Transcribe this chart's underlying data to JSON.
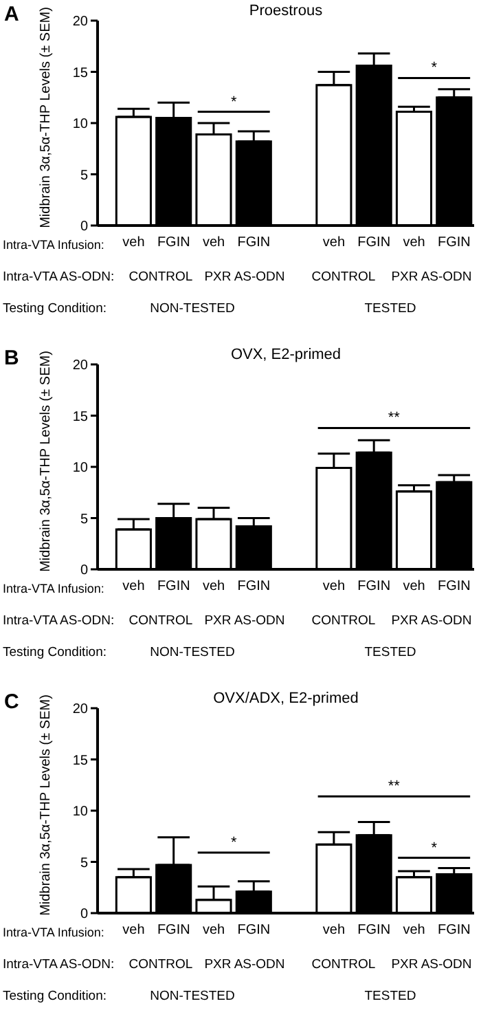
{
  "chart_data": [
    {
      "type": "bar",
      "title": "Proestrous",
      "ylabel": "Midbrain 3α,5α-THP Levels (± SEM)",
      "xlabel": "Intra-VTA Infusion:",
      "categories": [
        "veh",
        "FGIN",
        "veh",
        "FGIN",
        null,
        "veh",
        "FGIN",
        "veh",
        "FGIN"
      ],
      "values": [
        10.6,
        10.5,
        8.9,
        8.2,
        null,
        13.7,
        15.6,
        11.1,
        12.5
      ],
      "errors": [
        0.8,
        1.5,
        1.1,
        1.0,
        null,
        1.3,
        1.2,
        0.5,
        0.8
      ],
      "colors": [
        "#ffffff",
        "#000000",
        "#ffffff",
        "#000000",
        null,
        "#ffffff",
        "#000000",
        "#ffffff",
        "#000000"
      ],
      "ylim": [
        0,
        20
      ],
      "yticks": [
        0,
        5,
        10,
        15,
        20
      ],
      "grid": false,
      "legend": false,
      "annotations": [
        "A",
        "Intra-VTA AS-ODN:",
        "CONTROL",
        "PXR AS-ODN",
        "CONTROL",
        "PXR AS-ODN",
        "Testing Condition:",
        "NON-TESTED",
        "TESTED",
        "*",
        "*"
      ]
    },
    {
      "type": "bar",
      "title": "OVX, E2-primed",
      "ylabel": "Midbrain 3α,5α-THP Levels (± SEM)",
      "xlabel": "Intra-VTA Infusion:",
      "categories": [
        "veh",
        "FGIN",
        "veh",
        "FGIN",
        null,
        "veh",
        "FGIN",
        "veh",
        "FGIN"
      ],
      "values": [
        3.9,
        5.0,
        4.9,
        4.2,
        null,
        9.9,
        11.4,
        7.6,
        8.5
      ],
      "errors": [
        1.0,
        1.4,
        1.1,
        0.8,
        null,
        1.4,
        1.2,
        0.6,
        0.7
      ],
      "colors": [
        "#ffffff",
        "#000000",
        "#ffffff",
        "#000000",
        null,
        "#ffffff",
        "#000000",
        "#ffffff",
        "#000000"
      ],
      "ylim": [
        0,
        20
      ],
      "yticks": [
        0,
        5,
        10,
        15,
        20
      ],
      "grid": false,
      "legend": false,
      "annotations": [
        "B",
        "Intra-VTA AS-ODN:",
        "CONTROL",
        "PXR AS-ODN",
        "CONTROL",
        "PXR AS-ODN",
        "Testing Condition:",
        "NON-TESTED",
        "TESTED",
        "**"
      ]
    },
    {
      "type": "bar",
      "title": "OVX/ADX, E2-primed",
      "ylabel": "Midbrain 3α,5α-THP Levels (± SEM)",
      "xlabel": "Intra-VTA Infusion:",
      "categories": [
        "veh",
        "FGIN",
        "veh",
        "FGIN",
        null,
        "veh",
        "FGIN",
        "veh",
        "FGIN"
      ],
      "values": [
        3.5,
        4.7,
        1.3,
        2.1,
        null,
        6.7,
        7.6,
        3.5,
        3.8
      ],
      "errors": [
        0.8,
        2.7,
        1.3,
        1.0,
        null,
        1.2,
        1.3,
        0.6,
        0.6
      ],
      "colors": [
        "#ffffff",
        "#000000",
        "#ffffff",
        "#000000",
        null,
        "#ffffff",
        "#000000",
        "#ffffff",
        "#000000"
      ],
      "ylim": [
        0,
        20
      ],
      "yticks": [
        0,
        5,
        10,
        15,
        20
      ],
      "grid": false,
      "legend": false,
      "annotations": [
        "C",
        "Intra-VTA AS-ODN:",
        "CONTROL",
        "PXR AS-ODN",
        "CONTROL",
        "PXR AS-ODN",
        "Testing Condition:",
        "NON-TESTED",
        "TESTED",
        "*",
        "**",
        "*"
      ]
    }
  ]
}
